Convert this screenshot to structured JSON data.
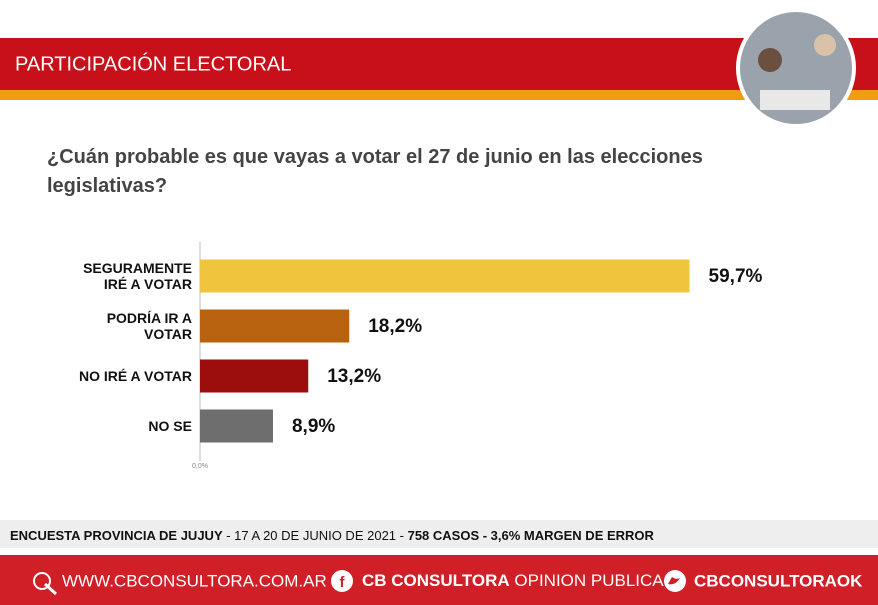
{
  "header": {
    "title": "PARTICIPACIÓN ELECTORAL"
  },
  "chart_data": {
    "type": "bar",
    "orientation": "horizontal",
    "title": "¿Cuán probable es que vayas a votar el 27 de junio en las elecciones legislativas?",
    "categories": [
      "SEGURAMENTE IRÉ A VOTAR",
      "PODRÍA IR A VOTAR",
      "NO IRÉ A VOTAR",
      "NO SE"
    ],
    "values": [
      59.7,
      18.2,
      13.2,
      8.9
    ],
    "value_labels": [
      "59,7%",
      "18,2%",
      "13,2%",
      "8,9%"
    ],
    "colors": [
      "#f0c43c",
      "#b8620f",
      "#9c0d0d",
      "#6e6e6e"
    ],
    "xlim": [
      0,
      60
    ],
    "xticks": [
      {
        "value": 0,
        "label": "0,0%"
      }
    ]
  },
  "footer": {
    "survey": [
      {
        "text": "ENCUESTA PROVINCIA DE JUJUY",
        "bold": true
      },
      {
        "text": " - 17 A 20 DE JUNIO DE 2021 - ",
        "bold": false
      },
      {
        "text": "758 CASOS - 3,6% MARGEN DE ERROR",
        "bold": true
      }
    ],
    "website": "WWW.CBCONSULTORA.COM.AR",
    "facebook_name": "CB CONSULTORA",
    "facebook_tagline": "OPINION PUBLICA",
    "twitter": "CBCONSULTORAOK"
  }
}
